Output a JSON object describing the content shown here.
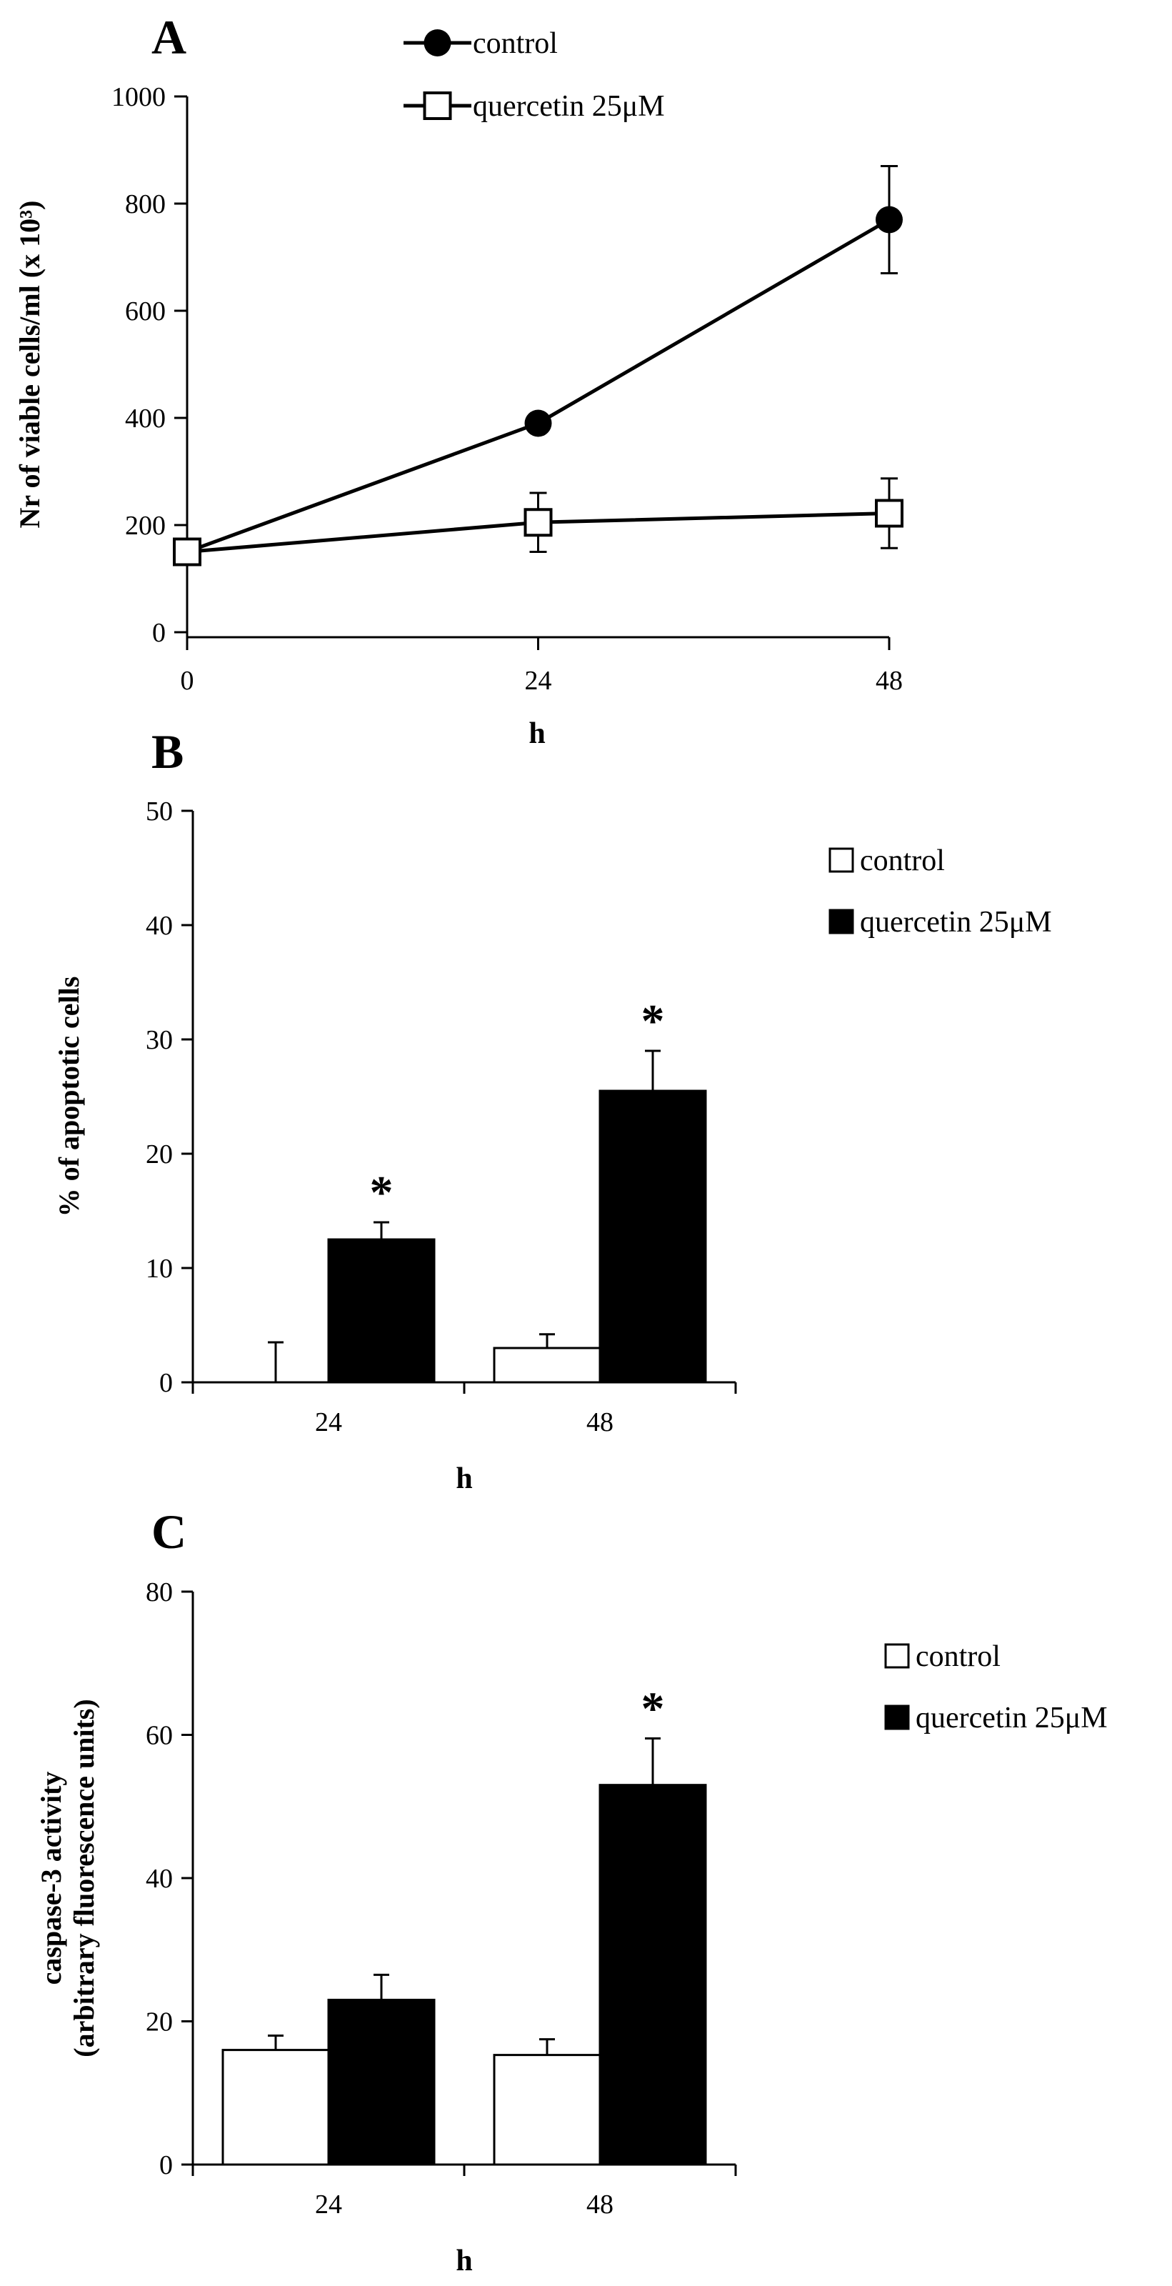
{
  "chart_data": [
    {
      "panel": "A",
      "type": "line",
      "xlabel": "h",
      "ylabel": "Nr of viable cells/ml (x 10³)",
      "x": [
        0,
        24,
        48
      ],
      "xticks": [
        "0",
        "24",
        "48"
      ],
      "ylim": [
        0,
        1000
      ],
      "yticks": [
        "0",
        "200",
        "400",
        "600",
        "800",
        "1000"
      ],
      "legend_position": "top-center",
      "series": [
        {
          "name": "control",
          "marker": "filled-circle",
          "color": "#000000",
          "values": [
            150,
            390,
            770
          ],
          "errors": [
            0,
            0,
            100
          ]
        },
        {
          "name": "quercetin 25μM",
          "marker": "open-square",
          "color": "#000000",
          "values": [
            150,
            205,
            222
          ],
          "errors": [
            0,
            55,
            65
          ]
        }
      ]
    },
    {
      "panel": "B",
      "type": "bar",
      "xlabel": "h",
      "ylabel": "% of apoptotic cells",
      "categories": [
        "24",
        "48"
      ],
      "ylim": [
        0,
        50
      ],
      "yticks": [
        "0",
        "10",
        "20",
        "30",
        "40",
        "50"
      ],
      "legend_position": "top-right",
      "series": [
        {
          "name": "control",
          "fill": "#ffffff",
          "values": [
            0,
            3
          ],
          "errors": [
            3.5,
            1.2
          ]
        },
        {
          "name": "quercetin 25μM",
          "fill": "#000000",
          "values": [
            12.5,
            25.5
          ],
          "errors": [
            1.5,
            3.5
          ]
        }
      ],
      "annotations": [
        {
          "category": "24",
          "series": "quercetin 25μM",
          "text": "*"
        },
        {
          "category": "48",
          "series": "quercetin 25μM",
          "text": "*"
        }
      ]
    },
    {
      "panel": "C",
      "type": "bar",
      "xlabel": "h",
      "ylabel": [
        "caspase-3 activity",
        "(arbitrary fluorescence units)"
      ],
      "categories": [
        "24",
        "48"
      ],
      "ylim": [
        0,
        80
      ],
      "yticks": [
        "0",
        "20",
        "40",
        "60",
        "80"
      ],
      "legend_position": "top-right",
      "series": [
        {
          "name": "control",
          "fill": "#ffffff",
          "values": [
            16,
            15.3
          ],
          "errors": [
            2,
            2.2
          ]
        },
        {
          "name": "quercetin 25μM",
          "fill": "#000000",
          "values": [
            23,
            53
          ],
          "errors": [
            3.5,
            6.5
          ]
        }
      ],
      "annotations": [
        {
          "category": "48",
          "series": "quercetin 25μM",
          "text": "*"
        }
      ]
    }
  ]
}
